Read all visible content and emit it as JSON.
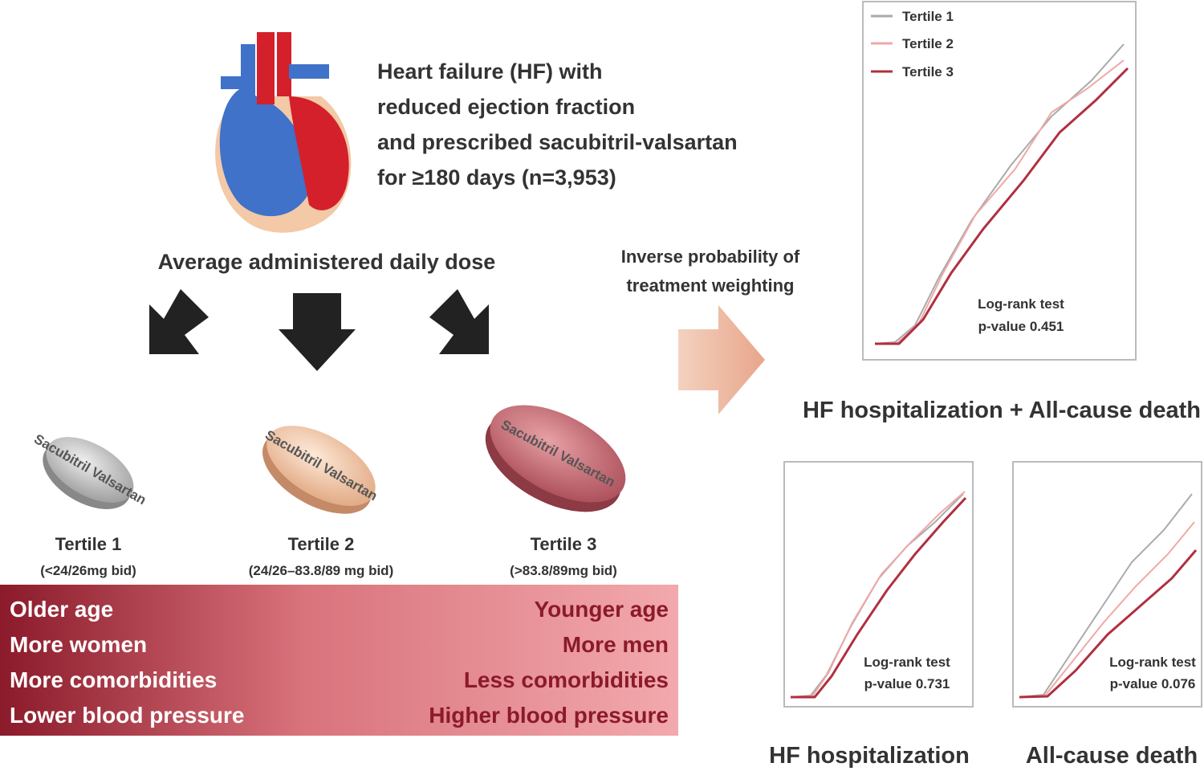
{
  "description": [
    "Heart failure (HF) with",
    "reduced ejection fraction",
    "and prescribed sacubitril-valsartan",
    "for ≥180 days (n=3,953)"
  ],
  "dose_label": "Average administered daily dose",
  "weighting": [
    "Inverse probability of",
    "treatment weighting"
  ],
  "tertiles": [
    {
      "pill": "Sacubitril Valsartan",
      "name": "Tertile 1",
      "dose": "(<24/26mg bid)"
    },
    {
      "pill": "Sacubitril Valsartan",
      "name": "Tertile 2",
      "dose": "(24/26–83.8/89 mg bid)"
    },
    {
      "pill": "Sacubitril Valsartan",
      "name": "Tertile 3",
      "dose": "(>83.8/89mg bid)"
    }
  ],
  "comparison": {
    "left": [
      "Older age",
      "More women",
      "More comorbidities",
      "Lower blood pressure"
    ],
    "right": [
      "Younger age",
      "More men",
      "Less comorbidities",
      "Higher blood pressure"
    ]
  },
  "charts": [
    {
      "title": "HF hospitalization + All-cause death",
      "legend": [
        "Tertile 1",
        "Tertile 2",
        "Tertile 3"
      ],
      "test": "Log-rank test",
      "p_value": "p-value 0.451"
    },
    {
      "title": "HF hospitalization",
      "test": "Log-rank test",
      "p_value": "p-value 0.731"
    },
    {
      "title": "All-cause death",
      "test": "Log-rank test",
      "p_value": "p-value 0.076"
    }
  ]
}
